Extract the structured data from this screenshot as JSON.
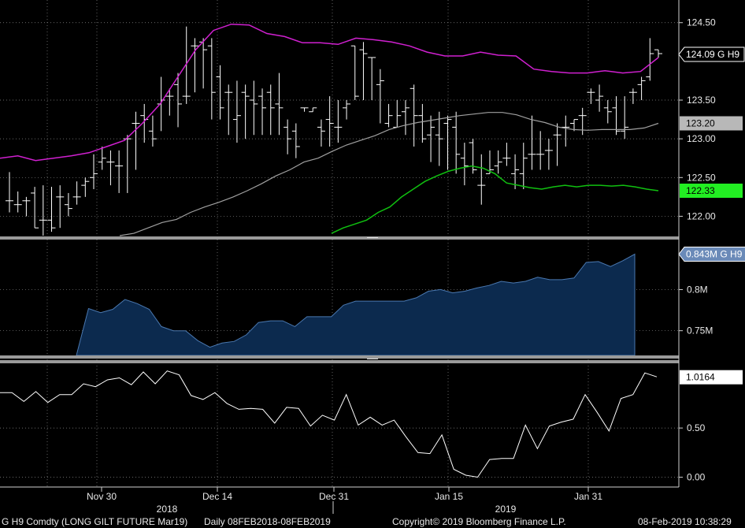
{
  "footer": {
    "security": "G H9 Comdty (LONG GILT FUTURE  Mar19)",
    "range": "Daily 08FEB2018-08FEB2019",
    "copyright": "Copyright© 2019 Bloomberg Finance L.P.",
    "timestamp": "08-Feb-2019 10:38:29"
  },
  "colors": {
    "background": "#000000",
    "upper_band": "#d020d0",
    "moving_average": "#a0a0a0",
    "lower_band": "#10c010",
    "volume_fill": "#0c2a4e",
    "volume_line": "#4a78b0",
    "osc_line": "#ffffff",
    "price_bar": "#ffffff"
  },
  "chart_data": [
    {
      "type": "line",
      "name": "price",
      "bars": "ohlc",
      "grid": true,
      "ylim": [
        121.75,
        124.65
      ],
      "yticks": [
        "124.50",
        "123.50",
        "123.00",
        "122.50",
        "122.00"
      ],
      "x_axis": {
        "dates": [
          "Nov 30",
          "Dec 14",
          "Dec 31",
          "Jan 15",
          "Jan 31"
        ],
        "years": [
          "2018",
          "2019"
        ]
      },
      "ohlc": [
        [
          122.2,
          122.57,
          122.05,
          122.2
        ],
        [
          122.15,
          122.32,
          122.05,
          122.15
        ],
        [
          122.2,
          122.25,
          122.0,
          122.2
        ],
        [
          122.3,
          122.38,
          121.85,
          121.85
        ],
        [
          121.95,
          122.4,
          121.75,
          121.95
        ],
        [
          121.95,
          122.38,
          121.8,
          121.85
        ],
        [
          122.25,
          122.4,
          121.85,
          122.25
        ],
        [
          122.15,
          122.3,
          122.0,
          122.1
        ],
        [
          122.25,
          122.45,
          122.15,
          122.25
        ],
        [
          122.4,
          122.5,
          122.25,
          122.45
        ],
        [
          122.5,
          122.8,
          122.35,
          122.55
        ],
        [
          122.7,
          122.9,
          122.6,
          122.75
        ],
        [
          122.7,
          122.85,
          122.4,
          122.7
        ],
        [
          122.65,
          122.85,
          122.3,
          122.65
        ],
        [
          123.0,
          123.05,
          122.3,
          123.0
        ],
        [
          123.2,
          123.35,
          122.6,
          123.2
        ],
        [
          123.3,
          123.45,
          122.95,
          123.25
        ],
        [
          123.1,
          123.3,
          122.9,
          123.0
        ],
        [
          123.45,
          123.8,
          123.1,
          123.5
        ],
        [
          123.55,
          123.65,
          123.3,
          123.55
        ],
        [
          123.7,
          123.85,
          123.15,
          123.45
        ],
        [
          123.55,
          124.45,
          123.45,
          123.55
        ],
        [
          124.2,
          124.3,
          123.6,
          124.2
        ],
        [
          124.25,
          124.3,
          123.65,
          124.15
        ],
        [
          124.2,
          124.3,
          123.25,
          123.6
        ],
        [
          123.8,
          123.95,
          123.25,
          123.4
        ],
        [
          123.6,
          123.7,
          123.05,
          123.6
        ],
        [
          123.25,
          123.75,
          122.95,
          123.3
        ],
        [
          123.6,
          123.7,
          123.0,
          123.55
        ],
        [
          123.5,
          123.75,
          123.05,
          123.45
        ],
        [
          123.55,
          123.65,
          123.05,
          123.4
        ],
        [
          123.6,
          123.7,
          123.05,
          123.4
        ],
        [
          123.45,
          123.85,
          123.05,
          123.4
        ],
        [
          123.15,
          123.25,
          122.8,
          123.0
        ],
        [
          123.1,
          123.2,
          122.75,
          122.9
        ],
        [
          123.4,
          123.4,
          123.35,
          123.4
        ],
        [
          123.35,
          123.4,
          123.35,
          123.4
        ],
        [
          123.15,
          123.25,
          122.9,
          123.1
        ],
        [
          123.25,
          123.55,
          122.9,
          123.2
        ],
        [
          123.15,
          123.5,
          122.95,
          123.15
        ],
        [
          123.4,
          123.5,
          123.25,
          123.45
        ],
        [
          124.2,
          124.2,
          123.5,
          123.55
        ],
        [
          124.15,
          124.25,
          123.5,
          124.1
        ],
        [
          124.05,
          124.05,
          123.5,
          124.05
        ],
        [
          123.7,
          123.9,
          123.2,
          123.75
        ],
        [
          123.2,
          123.45,
          123.15,
          123.3
        ],
        [
          123.15,
          123.5,
          123.15,
          123.3
        ],
        [
          123.35,
          123.5,
          123.05,
          123.4
        ],
        [
          123.65,
          123.7,
          122.9,
          123.3
        ],
        [
          123.3,
          123.45,
          122.95,
          123.0
        ],
        [
          123.05,
          123.3,
          122.7,
          123.15
        ],
        [
          123.05,
          123.35,
          122.65,
          123.0
        ],
        [
          123.2,
          123.3,
          122.6,
          123.25
        ],
        [
          123.15,
          123.35,
          122.55,
          122.8
        ],
        [
          122.75,
          122.95,
          122.4,
          122.65
        ],
        [
          122.95,
          123.0,
          122.55,
          122.6
        ],
        [
          122.4,
          122.8,
          122.15,
          122.4
        ],
        [
          122.55,
          122.85,
          122.55,
          122.6
        ],
        [
          122.65,
          122.85,
          122.55,
          122.7
        ],
        [
          122.75,
          122.95,
          122.65,
          122.75
        ],
        [
          122.55,
          122.8,
          122.35,
          122.6
        ],
        [
          122.55,
          122.95,
          122.35,
          122.75
        ],
        [
          122.8,
          123.3,
          122.6,
          122.8
        ],
        [
          122.8,
          123.1,
          122.6,
          122.8
        ],
        [
          122.85,
          123.0,
          122.6,
          122.85
        ],
        [
          123.05,
          123.2,
          122.65,
          123.05
        ],
        [
          123.15,
          123.3,
          122.9,
          123.15
        ],
        [
          123.2,
          123.25,
          123.1,
          123.25
        ],
        [
          123.3,
          123.4,
          123.05,
          123.3
        ],
        [
          123.6,
          123.65,
          123.45,
          123.6
        ],
        [
          123.5,
          123.7,
          123.35,
          123.55
        ],
        [
          123.4,
          123.5,
          123.2,
          123.35
        ],
        [
          123.4,
          123.55,
          123.05,
          123.1
        ],
        [
          123.1,
          123.55,
          123.0,
          123.15
        ],
        [
          123.6,
          123.65,
          123.45,
          123.6
        ],
        [
          123.7,
          123.8,
          123.5,
          123.75
        ],
        [
          123.8,
          124.3,
          123.75,
          124.1
        ],
        [
          124.15,
          124.15,
          124.05,
          124.1
        ]
      ],
      "series": [
        {
          "values": [
            122.75,
            122.78,
            122.72,
            122.75,
            122.78,
            122.82,
            122.9,
            122.98,
            123.2,
            123.45,
            123.8,
            124.15,
            124.4,
            124.48,
            124.47,
            124.36,
            124.32,
            124.24,
            124.24,
            124.22,
            124.3,
            124.28,
            124.25,
            124.2,
            124.12,
            124.07,
            124.07,
            124.12,
            124.08,
            124.07,
            123.9,
            123.87,
            123.85,
            123.85,
            123.88,
            123.85,
            123.87,
            124.05
          ]
        },
        {
          "values": [
            121.75,
            121.78,
            121.85,
            121.92,
            121.96,
            122.05,
            122.12,
            122.18,
            122.25,
            122.33,
            122.42,
            122.52,
            122.6,
            122.7,
            122.75,
            122.84,
            122.92,
            122.98,
            123.04,
            123.12,
            123.17,
            123.21,
            123.24,
            123.27,
            123.3,
            123.32,
            123.34,
            123.34,
            123.31,
            123.25,
            123.21,
            123.15,
            123.12,
            123.11,
            123.12,
            123.12,
            123.12,
            123.14,
            123.2
          ]
        },
        {
          "values": [
            121.78,
            121.85,
            121.9,
            121.95,
            122.05,
            122.12,
            122.25,
            122.35,
            122.45,
            122.52,
            122.58,
            122.62,
            122.65,
            122.62,
            122.55,
            122.43,
            122.4,
            122.37,
            122.35,
            122.38,
            122.4,
            122.38,
            122.4,
            122.4,
            122.39,
            122.4,
            122.38,
            122.35,
            122.33
          ]
        }
      ],
      "last_labels": [
        "124.09 G H9",
        "123.20",
        "122.33"
      ]
    },
    {
      "type": "area",
      "name": "volume",
      "yticks": [
        "0.8M",
        "0.75M"
      ],
      "ylim": [
        0.72,
        0.855
      ],
      "values": [
        0.72,
        0.777,
        0.772,
        0.776,
        0.788,
        0.783,
        0.776,
        0.755,
        0.75,
        0.75,
        0.738,
        0.73,
        0.735,
        0.737,
        0.745,
        0.76,
        0.762,
        0.762,
        0.755,
        0.767,
        0.767,
        0.767,
        0.781,
        0.786,
        0.786,
        0.786,
        0.786,
        0.786,
        0.79,
        0.798,
        0.8,
        0.796,
        0.798,
        0.802,
        0.805,
        0.81,
        0.808,
        0.81,
        0.815,
        0.812,
        0.812,
        0.814,
        0.833,
        0.834,
        0.828,
        0.835,
        0.843
      ],
      "last_label": "0.843M G H9"
    },
    {
      "type": "line",
      "name": "oscillator",
      "yticks": [
        "0.50",
        "0.00"
      ],
      "ylim": [
        -0.1,
        1.15
      ],
      "values": [
        0.86,
        0.86,
        0.77,
        0.87,
        0.76,
        0.84,
        0.84,
        0.95,
        0.92,
        0.99,
        1.01,
        0.94,
        1.07,
        0.95,
        1.08,
        1.04,
        0.83,
        0.79,
        0.86,
        0.75,
        0.69,
        0.7,
        0.69,
        0.55,
        0.71,
        0.7,
        0.52,
        0.63,
        0.58,
        0.84,
        0.53,
        0.61,
        0.53,
        0.58,
        0.41,
        0.25,
        0.24,
        0.43,
        0.08,
        0.02,
        0.0,
        0.18,
        0.19,
        0.19,
        0.53,
        0.29,
        0.52,
        0.56,
        0.59,
        0.84,
        0.66,
        0.47,
        0.8,
        0.84,
        1.06,
        1.02
      ],
      "last_label": "1.0164"
    }
  ]
}
